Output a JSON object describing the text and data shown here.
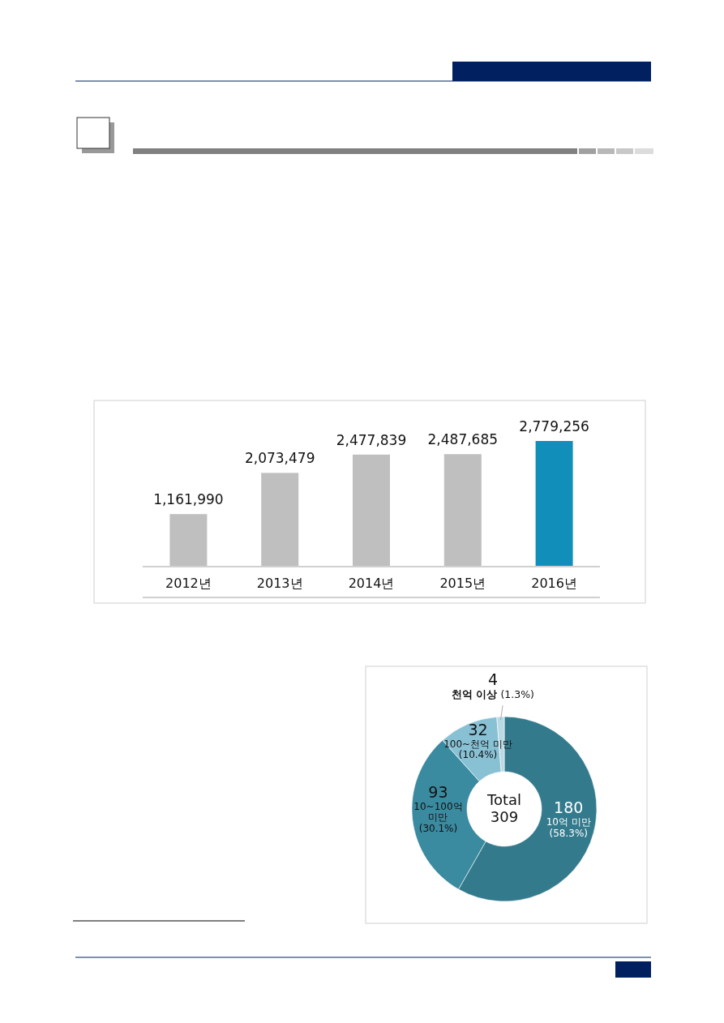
{
  "chart_data": [
    {
      "type": "bar",
      "categories": [
        "2012년",
        "2013년",
        "2014년",
        "2015년",
        "2016년"
      ],
      "values": [
        1161990,
        2073479,
        2477839,
        2487685,
        2779256
      ],
      "colors": [
        "#bfbfbf",
        "#bfbfbf",
        "#bfbfbf",
        "#bfbfbf",
        "#118fba"
      ],
      "value_labels": [
        "1,161,990",
        "2,073,479",
        "2,477,839",
        "2,487,685",
        "2,779,256"
      ]
    },
    {
      "type": "donut",
      "categories": [
        "10억 미만",
        "10~100억 미만",
        "100~천억 미만",
        "천억 이상"
      ],
      "values": [
        180,
        93,
        32,
        4
      ],
      "colors": [
        "#337a8c",
        "#3a8aa0",
        "#88c0d4",
        "#b9d9e4"
      ],
      "data_labels": true,
      "annotations": [
        "Total 309",
        "(58.3%)",
        "(30.1%)",
        "(10.4%)",
        "(1.3%)"
      ]
    }
  ]
}
